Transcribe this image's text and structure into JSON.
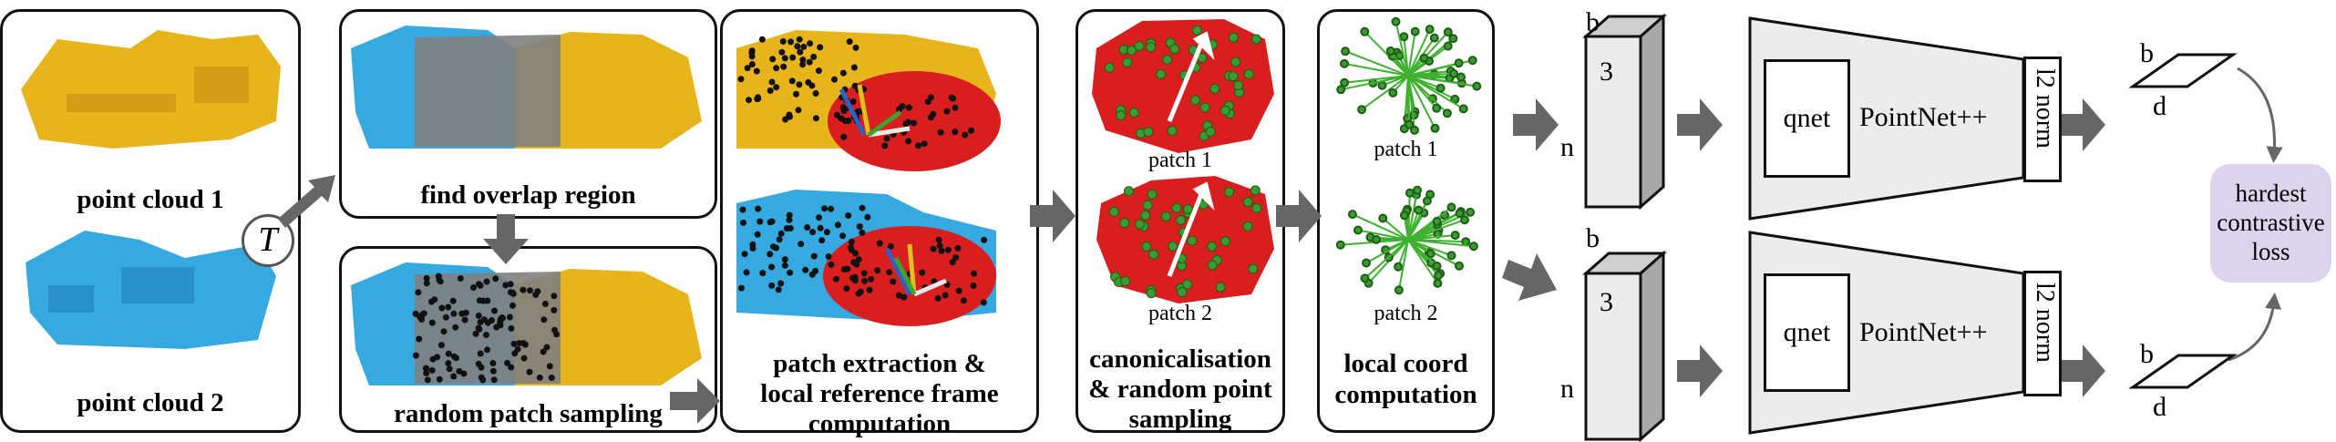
{
  "panels": {
    "p1": {
      "cap_top": "point cloud 1",
      "cap_bottom": "point cloud 2",
      "transform": "T"
    },
    "p2": {
      "cap": "find overlap region"
    },
    "p3": {
      "cap": "random patch sampling"
    },
    "p4": {
      "cap_line1": "patch extraction &",
      "cap_line2": "local reference frame",
      "cap_line3": "computation"
    },
    "p5": {
      "patch1": "patch 1",
      "patch2": "patch 2",
      "cap_line1": "canonicalisation",
      "cap_line2": "& random point",
      "cap_line3": "sampling"
    },
    "p6": {
      "patch1": "patch 1",
      "patch2": "patch 2",
      "cap_line1": "local coord",
      "cap_line2": "computation"
    }
  },
  "network": {
    "tensor_b": "b",
    "tensor_n": "n",
    "tensor_3": "3",
    "qnet": "qnet",
    "pointnet": "PointNet++",
    "l2norm": "l2 norm",
    "out_b": "b",
    "out_d": "d",
    "loss_line1": "hardest",
    "loss_line2": "contrastive",
    "loss_line3": "loss"
  },
  "colors": {
    "yellow": "#e8b41c",
    "blue": "#35a9e0",
    "red": "#d81e1e",
    "green": "#3a9b2e",
    "arrow": "#666666",
    "loss_bg": "#ddd3ec"
  }
}
